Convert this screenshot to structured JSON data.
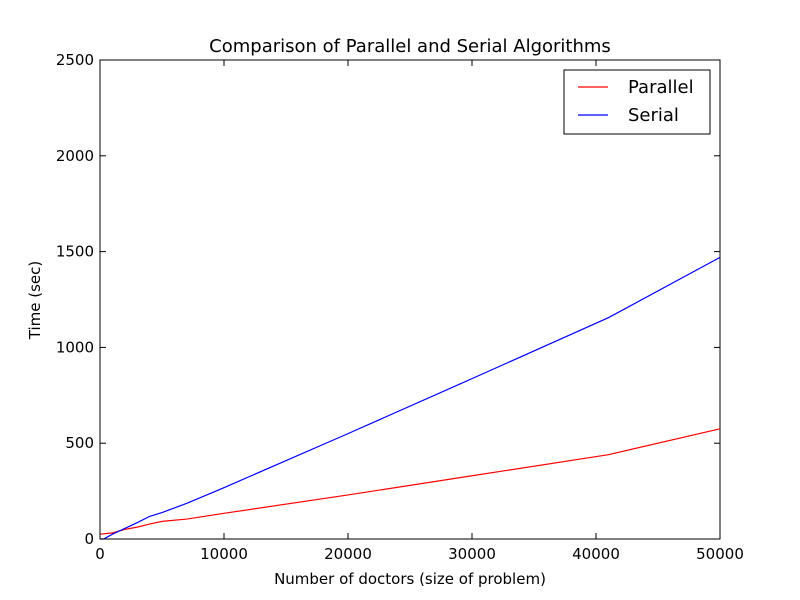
{
  "chart_data": {
    "type": "line",
    "title": "Comparison of Parallel and Serial Algorithms",
    "xlabel": "Number of doctors (size of problem)",
    "ylabel": "Time (sec)",
    "xlim": [
      0,
      50000
    ],
    "ylim": [
      0,
      2500
    ],
    "xticks": [
      0,
      10000,
      20000,
      30000,
      40000,
      50000
    ],
    "yticks": [
      0,
      500,
      1000,
      1500,
      2000,
      2500
    ],
    "grid": false,
    "legend_position": "top-right",
    "series": [
      {
        "name": "Parallel",
        "color": "#ff0000",
        "x": [
          0,
          1000,
          2000,
          3000,
          4000,
          5000,
          7000,
          10000,
          20000,
          30000,
          41000,
          50000
        ],
        "y": [
          25,
          32,
          50,
          62,
          78,
          92,
          104,
          134,
          230,
          330,
          440,
          575
        ]
      },
      {
        "name": "Serial",
        "color": "#0000ff",
        "x": [
          0,
          300,
          1000,
          2000,
          3000,
          4000,
          5000,
          7000,
          10000,
          20000,
          30000,
          41000,
          50000
        ],
        "y": [
          0,
          0,
          25,
          55,
          85,
          118,
          138,
          186,
          268,
          550,
          837,
          1155,
          1470
        ]
      }
    ]
  }
}
